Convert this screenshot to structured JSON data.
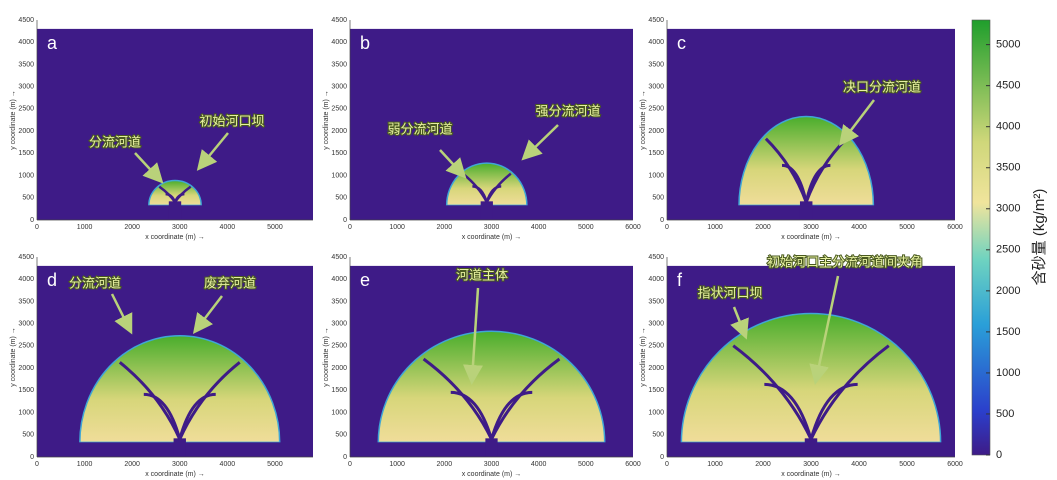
{
  "panels": [
    {
      "letter": "a",
      "xlabel": "x coordinate (m) →",
      "ylabel": "y coordinate (m) →",
      "xticks": [
        "0",
        "1000",
        "2000",
        "3000",
        "4000",
        "5000"
      ],
      "yticks": [
        "0",
        "500",
        "1000",
        "1500",
        "2000",
        "2500",
        "3000",
        "3500",
        "4000",
        "4500"
      ],
      "annotations": [
        "分流河道",
        "初始河口坝"
      ]
    },
    {
      "letter": "b",
      "xlabel": "x coordinate (m) →",
      "ylabel": "y coordinate (m) →",
      "xticks": [
        "0",
        "1000",
        "2000",
        "3000",
        "4000",
        "5000",
        "6000"
      ],
      "yticks": [
        "0",
        "500",
        "1000",
        "1500",
        "2000",
        "2500",
        "3000",
        "3500",
        "4000",
        "4500"
      ],
      "annotations": [
        "弱分流河道",
        "强分流河道"
      ]
    },
    {
      "letter": "c",
      "xlabel": "x coordinate (m) →",
      "ylabel": "y coordinate (m) →",
      "xticks": [
        "0",
        "1000",
        "2000",
        "3000",
        "4000",
        "5000",
        "6000"
      ],
      "yticks": [
        "0",
        "500",
        "1000",
        "1500",
        "2000",
        "2500",
        "3000",
        "3500",
        "4000",
        "4500"
      ],
      "annotations": [
        "决口分流河道"
      ]
    },
    {
      "letter": "d",
      "xlabel": "x coordinate (m) →",
      "ylabel": "y coordinate (m) →",
      "xticks": [
        "0",
        "1000",
        "2000",
        "3000",
        "4000",
        "5000"
      ],
      "yticks": [
        "0",
        "500",
        "1000",
        "1500",
        "2000",
        "2500",
        "3000",
        "3500",
        "4000",
        "4500"
      ],
      "annotations": [
        "分流河道",
        "废弃河道"
      ]
    },
    {
      "letter": "e",
      "xlabel": "x coordinate (m) →",
      "ylabel": "y coordinate (m) →",
      "xticks": [
        "0",
        "1000",
        "2000",
        "3000",
        "4000",
        "5000",
        "6000"
      ],
      "yticks": [
        "0",
        "500",
        "1000",
        "1500",
        "2000",
        "2500",
        "3000",
        "3500",
        "4000",
        "4500"
      ],
      "annotations": [
        "河道主体"
      ]
    },
    {
      "letter": "f",
      "xlabel": "x coordinate (m) →",
      "ylabel": "y coordinate (m) →",
      "xticks": [
        "0",
        "1000",
        "2000",
        "3000",
        "4000",
        "5000",
        "6000"
      ],
      "yticks": [
        "0",
        "500",
        "1000",
        "1500",
        "2000",
        "2500",
        "3000",
        "3500",
        "4000",
        "4500"
      ],
      "annotations": [
        "初始河口主分流河道间夹角",
        "指状河口坝"
      ]
    }
  ],
  "colorbar": {
    "label": "含砂量 (kg/m²)",
    "ticks": [
      "0",
      "500",
      "1000",
      "1500",
      "2000",
      "2500",
      "3000",
      "3500",
      "4000",
      "4500",
      "5000"
    ]
  }
}
